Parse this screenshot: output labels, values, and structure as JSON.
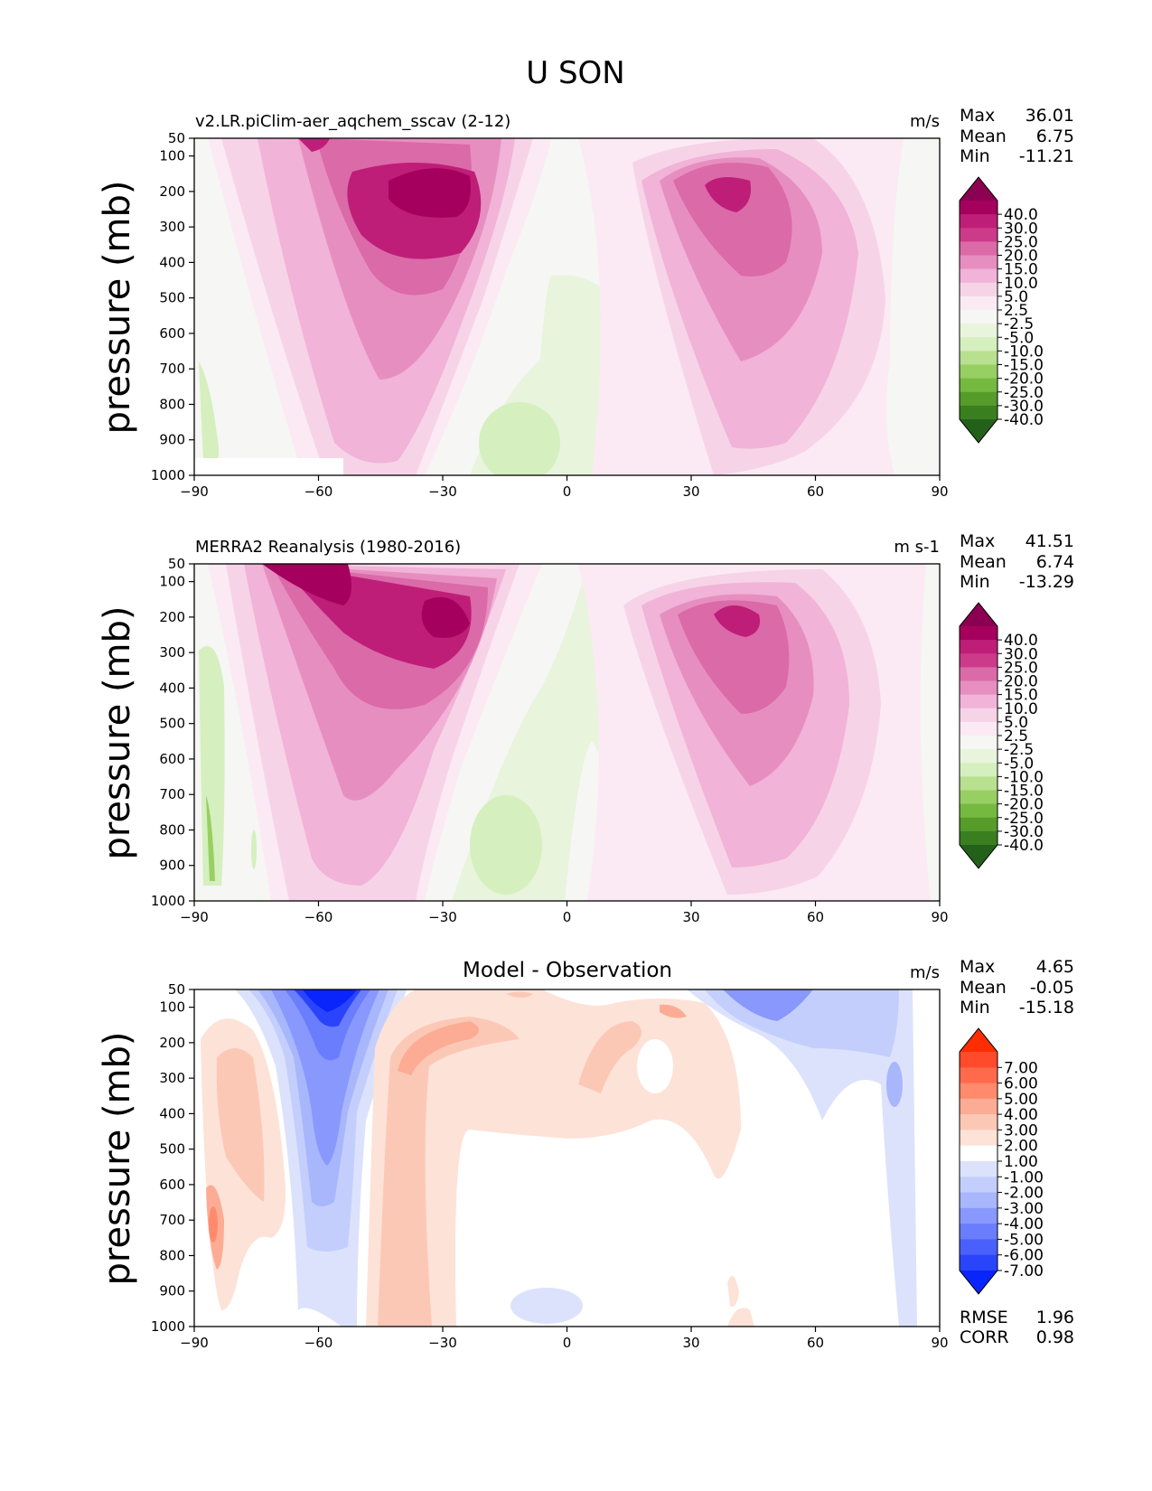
{
  "figure": {
    "title": "U SON"
  },
  "chart_data": [
    {
      "type": "contour",
      "title": "v2.LR.piClim-aer_aqchem_sscav (2-12)",
      "units": "m/s",
      "ylabel": "pressure (mb)",
      "xlabel": "",
      "xlim": [
        -90,
        90
      ],
      "xticks": [
        "−90",
        "−60",
        "−30",
        "0",
        "30",
        "60",
        "90"
      ],
      "yticks": [
        "50",
        "100",
        "200",
        "300",
        "400",
        "500",
        "600",
        "700",
        "800",
        "900",
        "1000"
      ],
      "stats": [
        {
          "label": "Max",
          "value": "36.01"
        },
        {
          "label": "Mean",
          "value": "6.75"
        },
        {
          "label": "Min",
          "value": "-11.21"
        }
      ],
      "colorbar": {
        "labels": [
          "40.0",
          "30.0",
          "25.0",
          "20.0",
          "15.0",
          "10.0",
          "5.0",
          "2.5",
          "-2.5",
          "-5.0",
          "-10.0",
          "-15.0",
          "-20.0",
          "-25.0",
          "-30.0",
          "-40.0"
        ],
        "colors": [
          "#8c0051",
          "#a5005d",
          "#be1e78",
          "#cc3a8a",
          "#db6aa8",
          "#e78ec0",
          "#f1b3d7",
          "#f7d3e8",
          "#fbeaf3",
          "#f6f6f4",
          "#e8f4dc",
          "#d5efbf",
          "#b8e08f",
          "#98cf63",
          "#76b941",
          "#569c2b",
          "#3a7f1f",
          "#23611a"
        ]
      },
      "jets": [
        {
          "lat": -38,
          "pressure": 200,
          "max": 36.01
        },
        {
          "lat": 42,
          "pressure": 200,
          "max": 30.0
        }
      ]
    },
    {
      "type": "contour",
      "title": "MERRA2 Reanalysis (1980-2016)",
      "units": "m s-1",
      "ylabel": "pressure (mb)",
      "xlabel": "",
      "xlim": [
        -90,
        90
      ],
      "xticks": [
        "−90",
        "−60",
        "−30",
        "0",
        "30",
        "60",
        "90"
      ],
      "yticks": [
        "50",
        "100",
        "200",
        "300",
        "400",
        "500",
        "600",
        "700",
        "800",
        "900",
        "1000"
      ],
      "stats": [
        {
          "label": "Max",
          "value": "41.51"
        },
        {
          "label": "Mean",
          "value": "6.74"
        },
        {
          "label": "Min",
          "value": "-13.29"
        }
      ],
      "colorbar": {
        "labels": [
          "40.0",
          "30.0",
          "25.0",
          "20.0",
          "15.0",
          "10.0",
          "5.0",
          "2.5",
          "-2.5",
          "-5.0",
          "-10.0",
          "-15.0",
          "-20.0",
          "-25.0",
          "-30.0",
          "-40.0"
        ],
        "colors": [
          "#8c0051",
          "#a5005d",
          "#be1e78",
          "#cc3a8a",
          "#db6aa8",
          "#e78ec0",
          "#f1b3d7",
          "#f7d3e8",
          "#fbeaf3",
          "#f6f6f4",
          "#e8f4dc",
          "#d5efbf",
          "#b8e08f",
          "#98cf63",
          "#76b941",
          "#569c2b",
          "#3a7f1f",
          "#23611a"
        ]
      },
      "jets": [
        {
          "lat": -57,
          "pressure": 100,
          "max": 41.51
        },
        {
          "lat": 40,
          "pressure": 200,
          "max": 30.0
        }
      ]
    },
    {
      "type": "contour",
      "title": "Model - Observation",
      "units": "m/s",
      "ylabel": "pressure (mb)",
      "xlabel": "",
      "xlim": [
        -90,
        90
      ],
      "xticks": [
        "−90",
        "−60",
        "−30",
        "0",
        "30",
        "60",
        "90"
      ],
      "yticks": [
        "50",
        "100",
        "200",
        "300",
        "400",
        "500",
        "600",
        "700",
        "800",
        "900",
        "1000"
      ],
      "stats": [
        {
          "label": "Max",
          "value": "4.65"
        },
        {
          "label": "Mean",
          "value": "-0.05"
        },
        {
          "label": "Min",
          "value": "-15.18"
        }
      ],
      "colorbar": {
        "labels": [
          "7.00",
          "6.00",
          "5.00",
          "4.00",
          "3.00",
          "2.00",
          "1.00",
          "-1.00",
          "-2.00",
          "-3.00",
          "-4.00",
          "-5.00",
          "-6.00",
          "-7.00"
        ],
        "colors": [
          "#ff2d00",
          "#ff4a2c",
          "#ff6a4c",
          "#ff8a6c",
          "#fcac94",
          "#fcc8b6",
          "#fde2d8",
          "#ffffff",
          "#dce2fc",
          "#c4cefc",
          "#a8b6fc",
          "#8898fc",
          "#6a7dfc",
          "#4a60fc",
          "#2a44fc",
          "#0a24fc"
        ]
      },
      "extra_stats": [
        {
          "label": "RMSE",
          "value": "1.96"
        },
        {
          "label": "CORR",
          "value": "0.98"
        }
      ]
    }
  ]
}
